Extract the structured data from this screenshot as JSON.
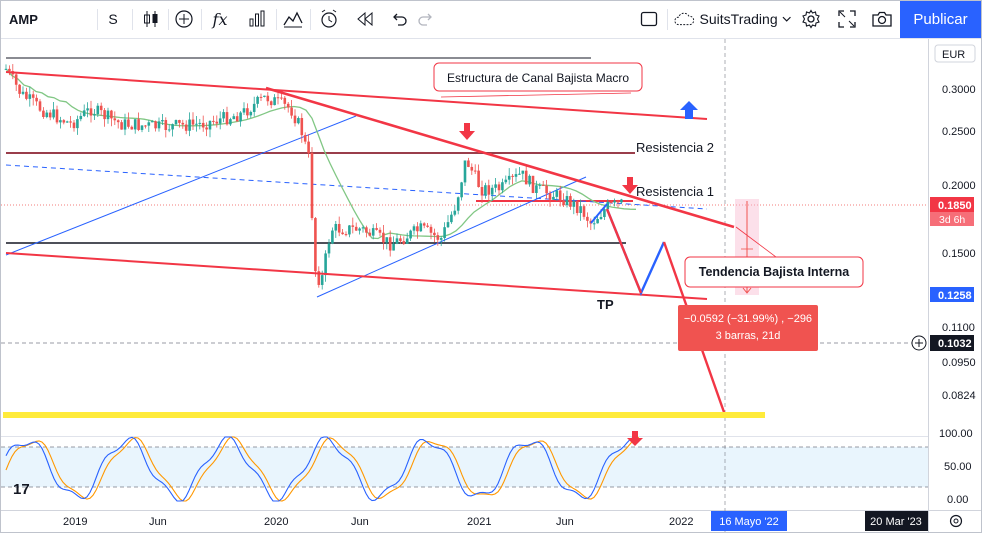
{
  "toolbar": {
    "symbol": "AMP",
    "interval": "S",
    "layout_name": "SuitsTrading",
    "publish_label": "Publicar",
    "icons": [
      "candles-icon",
      "plus-circle-icon",
      "fx-icon",
      "templates-icon",
      "indicator-icon",
      "alert-icon",
      "replay-icon",
      "undo-icon",
      "redo-icon",
      "square-icon",
      "cloud-icon",
      "gear-icon",
      "fullscreen-icon",
      "camera-icon"
    ]
  },
  "price_axis": {
    "currency": "EUR",
    "ticks": [
      "0.3000",
      "0.2500",
      "0.2000",
      "0.1500",
      "0.1100",
      "0.0950",
      "0.0824"
    ],
    "current_price": "0.1850",
    "countdown": "3d 6h",
    "target_price": "0.1258",
    "crosshair_price": "0.1032"
  },
  "osc_axis": {
    "ticks": [
      "100.00",
      "50.00",
      "0.00"
    ]
  },
  "time_axis": {
    "ticks": [
      "2019",
      "Jun",
      "2020",
      "Jun",
      "2021",
      "Jun",
      "2022"
    ],
    "crosshair_date": "16 Mayo '22",
    "end_date": "20 Mar '23"
  },
  "annotations": {
    "macro_channel": "Estructura de Canal Bajista Macro",
    "resistance2": "Resistencia 2",
    "resistance1": "Resistencia 1",
    "internal_trend": "Tendencia Bajista Interna",
    "tp": "TP",
    "measure_line1": "−0.0592 (−31.99%) , −296",
    "measure_line2": "3 barras, 21d"
  },
  "colors": {
    "accent": "#2962ff",
    "trend_red": "#f23645",
    "measure_red": "#f05350",
    "yellow_line": "#ffeb3b",
    "ma_green": "#81c784",
    "ma_black": "#434651",
    "candle_up": "#26a69a",
    "candle_down": "#ef5350",
    "stoch_k": "#2962ff",
    "stoch_d": "#ff9800"
  }
}
